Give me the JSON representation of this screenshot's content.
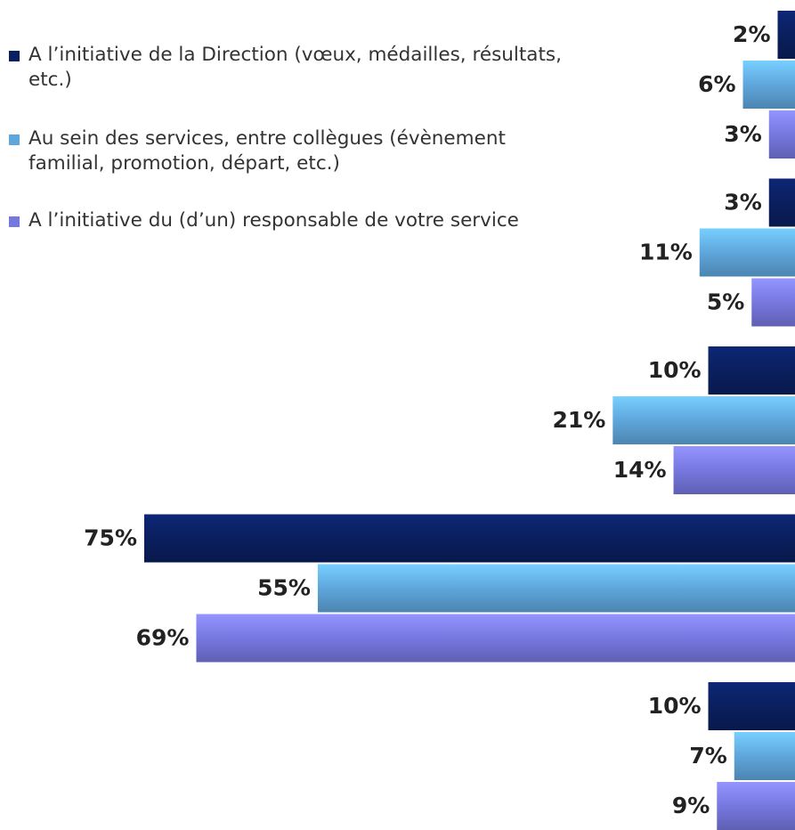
{
  "chart_data": {
    "type": "barh",
    "categories": [
      null,
      null,
      null,
      null,
      null
    ],
    "xlim": [
      0,
      75
    ],
    "legend": "top-left",
    "series": [
      {
        "name": "A l’initiative de la Direction (vœux, médailles, résultats, etc.)",
        "color": "#0a1f5e",
        "values": [
          2,
          3,
          10,
          75,
          10
        ],
        "value_labels": [
          "2%",
          "3%",
          "10%",
          "75%",
          "10%"
        ]
      },
      {
        "name": "Au sein des services, entre collègues (évènement familial, promotion, départ, etc.)",
        "color": "#5fa6dc",
        "values": [
          6,
          11,
          21,
          55,
          7
        ],
        "value_labels": [
          "6%",
          "11%",
          "21%",
          "55%",
          "7%"
        ]
      },
      {
        "name": "A l’initiative du (d’un) responsable de votre service",
        "color": "#7777e0",
        "values": [
          3,
          5,
          14,
          69,
          9
        ],
        "value_labels": [
          "3%",
          "5%",
          "14%",
          "69%",
          "9%"
        ]
      }
    ]
  }
}
